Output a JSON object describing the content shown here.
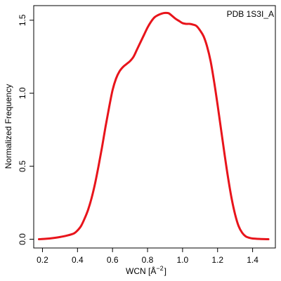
{
  "chart_data": {
    "type": "line",
    "annotation": "PDB 1S3I_A",
    "xlabel": "WCN [",
    "xlabel_unit_base": "Å",
    "xlabel_unit_exp": "−2",
    "xlabel_close": "]",
    "ylabel": "Normalized Frequency",
    "xlim": [
      0.15,
      1.53
    ],
    "ylim": [
      -0.06,
      1.6
    ],
    "x_ticks": [
      0.2,
      0.4,
      0.6,
      0.8,
      1.0,
      1.2,
      1.4
    ],
    "x_tick_labels": [
      "0.2",
      "0.4",
      "0.6",
      "0.8",
      "1.0",
      "1.2",
      "1.4"
    ],
    "y_ticks": [
      0.0,
      0.5,
      1.0,
      1.5
    ],
    "y_tick_labels": [
      "0.0",
      "0.5",
      "1.0",
      "1.5"
    ],
    "grid": false,
    "series": [
      {
        "color": "#e8141b",
        "x": [
          0.18,
          0.22,
          0.26,
          0.3,
          0.34,
          0.38,
          0.4,
          0.42,
          0.44,
          0.46,
          0.48,
          0.5,
          0.52,
          0.54,
          0.56,
          0.58,
          0.6,
          0.62,
          0.64,
          0.66,
          0.68,
          0.7,
          0.72,
          0.74,
          0.76,
          0.78,
          0.8,
          0.82,
          0.84,
          0.86,
          0.88,
          0.9,
          0.92,
          0.94,
          0.96,
          0.98,
          1.0,
          1.02,
          1.04,
          1.06,
          1.08,
          1.1,
          1.12,
          1.14,
          1.16,
          1.18,
          1.2,
          1.22,
          1.24,
          1.26,
          1.28,
          1.3,
          1.32,
          1.34,
          1.36,
          1.38,
          1.4,
          1.44,
          1.49
        ],
        "y": [
          0.0,
          0.003,
          0.008,
          0.015,
          0.025,
          0.04,
          0.06,
          0.09,
          0.14,
          0.2,
          0.28,
          0.38,
          0.5,
          0.63,
          0.77,
          0.9,
          1.02,
          1.1,
          1.15,
          1.18,
          1.2,
          1.22,
          1.25,
          1.3,
          1.35,
          1.4,
          1.45,
          1.49,
          1.52,
          1.535,
          1.545,
          1.55,
          1.548,
          1.53,
          1.51,
          1.495,
          1.48,
          1.475,
          1.475,
          1.47,
          1.46,
          1.43,
          1.39,
          1.32,
          1.22,
          1.08,
          0.92,
          0.75,
          0.58,
          0.42,
          0.28,
          0.17,
          0.09,
          0.045,
          0.02,
          0.01,
          0.005,
          0.002,
          0.0
        ]
      }
    ]
  }
}
